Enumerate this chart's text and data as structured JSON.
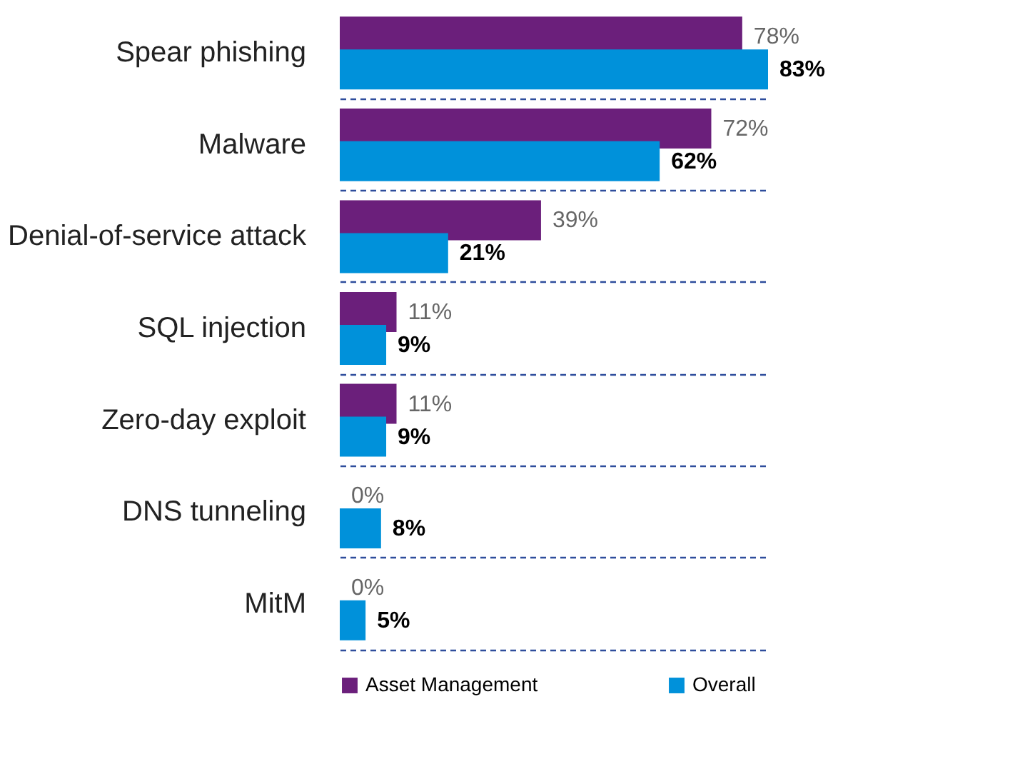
{
  "chart_data": {
    "type": "bar",
    "orientation": "horizontal",
    "categories": [
      "Spear phishing",
      "Malware",
      "Denial-of-service attack",
      "SQL injection",
      "Zero-day exploit",
      "DNS tunneling",
      "MitM"
    ],
    "series": [
      {
        "name": "Asset Management",
        "color": "#6b1f7b",
        "values": [
          78,
          72,
          39,
          11,
          11,
          0,
          0
        ],
        "value_labels": [
          "78%",
          "72%",
          "39%",
          "11%",
          "11%",
          "0%",
          "0%"
        ]
      },
      {
        "name": "Overall",
        "color": "#0091da",
        "values": [
          83,
          62,
          21,
          9,
          9,
          8,
          5
        ],
        "value_labels": [
          "83%",
          "62%",
          "21%",
          "9%",
          "9%",
          "8%",
          "5%"
        ]
      }
    ],
    "grid": "y",
    "legend": "bottom"
  }
}
